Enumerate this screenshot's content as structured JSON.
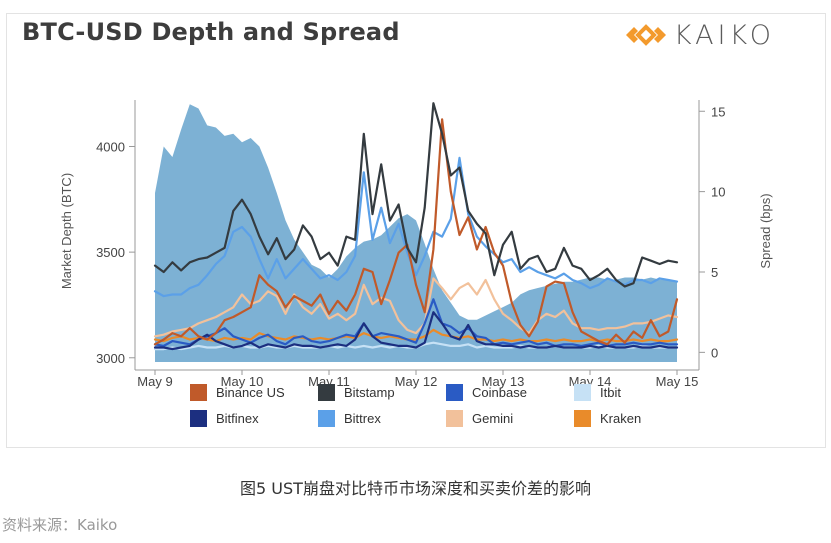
{
  "title": "BTC-USD Depth and Spread",
  "brand": {
    "name": "KAIKO",
    "logo_icon": "kaiko-logo-icon",
    "logo_color": "#f39a2d"
  },
  "caption": "图5 UST崩盘对比特币市场深度和买卖价差的影响",
  "source": "资料来源：Kaiko",
  "chart_data": {
    "type": "area+line",
    "title": "BTC-USD Depth and Spread",
    "x_tick_labels": [
      "May 9",
      "May 10",
      "May 11",
      "May 12",
      "May 13",
      "May 14",
      "May 15"
    ],
    "x_range": [
      0,
      6
    ],
    "y_left": {
      "label": "Market Depth (BTC)",
      "ticks": [
        3000,
        3500,
        4000
      ],
      "range": [
        2980,
        4220
      ]
    },
    "y_right": {
      "label": "Spread (bps)",
      "ticks": [
        0,
        5,
        10,
        15
      ],
      "range": [
        -0.6,
        15.7
      ]
    },
    "depth_area": {
      "name": "Market Depth",
      "color": "#6fa8cf",
      "x": [
        0,
        0.1,
        0.2,
        0.3,
        0.4,
        0.5,
        0.6,
        0.7,
        0.8,
        0.9,
        1.0,
        1.1,
        1.2,
        1.3,
        1.4,
        1.5,
        1.6,
        1.7,
        1.8,
        1.9,
        2.0,
        2.1,
        2.2,
        2.3,
        2.4,
        2.5,
        2.6,
        2.7,
        2.8,
        2.9,
        3.0,
        3.1,
        3.2,
        3.3,
        3.4,
        3.5,
        3.6,
        3.7,
        3.8,
        3.9,
        4.0,
        4.1,
        4.2,
        4.3,
        4.4,
        4.5,
        4.6,
        4.7,
        4.8,
        4.9,
        5.0,
        5.1,
        5.2,
        5.3,
        5.4,
        5.5,
        5.6,
        5.7,
        5.8,
        5.9,
        6.0
      ],
      "values": [
        3780,
        4000,
        3950,
        4080,
        4200,
        4180,
        4100,
        4090,
        4050,
        4060,
        4020,
        4040,
        4000,
        3900,
        3780,
        3650,
        3560,
        3500,
        3440,
        3420,
        3380,
        3420,
        3480,
        3520,
        3550,
        3560,
        3580,
        3620,
        3660,
        3680,
        3650,
        3540,
        3420,
        3320,
        3260,
        3200,
        3180,
        3180,
        3200,
        3220,
        3240,
        3260,
        3300,
        3320,
        3330,
        3340,
        3350,
        3360,
        3360,
        3370,
        3380,
        3380,
        3370,
        3370,
        3380,
        3380,
        3370,
        3380,
        3370,
        3370,
        3360
      ]
    },
    "series": [
      {
        "name": "Binance US",
        "color": "#c05a2a",
        "axis": "right",
        "values": [
          0.5,
          0.8,
          1.2,
          1.0,
          1.5,
          1.0,
          0.8,
          1.2,
          2.0,
          2.2,
          2.5,
          2.8,
          4.8,
          4.2,
          3.8,
          2.8,
          3.5,
          3.2,
          2.9,
          3.6,
          2.4,
          3.2,
          2.6,
          3.6,
          5.2,
          5.0,
          3.0,
          4.5,
          6.2,
          6.7,
          4.2,
          2.5,
          6.4,
          14.5,
          10.0,
          7.3,
          8.4,
          6.4,
          7.8,
          6.2,
          5.4,
          3.1,
          1.7,
          1.0,
          1.9,
          4.1,
          4.4,
          4.3,
          2.5,
          1.3,
          1.0,
          0.7,
          0.5,
          1.1,
          0.6,
          1.3,
          0.9,
          2.0,
          1.0,
          1.3,
          3.3
        ]
      },
      {
        "name": "Bitstamp",
        "color": "#343b40",
        "axis": "right",
        "values": [
          5.4,
          5.0,
          5.6,
          5.1,
          5.6,
          5.8,
          5.9,
          6.2,
          6.5,
          8.8,
          9.5,
          8.6,
          7.2,
          6.1,
          7.1,
          5.8,
          6.4,
          7.9,
          7.2,
          5.8,
          6.2,
          5.4,
          7.2,
          7.0,
          13.6,
          8.6,
          11.7,
          8.2,
          9.2,
          6.5,
          5.6,
          9.0,
          15.5,
          13.6,
          11.0,
          11.5,
          8.8,
          8.0,
          7.4,
          4.8,
          6.7,
          7.5,
          5.2,
          5.8,
          6.0,
          5.0,
          5.2,
          6.5,
          5.4,
          5.2,
          4.5,
          4.8,
          5.2,
          4.5,
          4.1,
          4.3,
          5.9,
          5.7,
          5.5,
          5.7,
          5.6
        ]
      },
      {
        "name": "Coinbase",
        "color": "#2a5bc4",
        "axis": "right",
        "values": [
          0.5,
          0.4,
          0.7,
          0.6,
          0.5,
          0.8,
          1.0,
          1.2,
          1.5,
          1.0,
          0.8,
          0.6,
          0.9,
          1.1,
          0.7,
          0.5,
          0.9,
          1.0,
          0.7,
          0.6,
          0.7,
          0.9,
          1.1,
          1.0,
          1.8,
          1.0,
          1.2,
          1.1,
          1.0,
          0.8,
          0.6,
          1.8,
          3.3,
          1.8,
          1.6,
          1.2,
          1.5,
          1.0,
          0.9,
          0.5,
          0.6,
          0.5,
          0.6,
          0.7,
          0.5,
          0.6,
          0.4,
          0.5,
          0.5,
          0.4,
          0.5,
          0.6,
          0.4,
          0.5,
          0.5,
          0.6,
          0.5,
          0.5,
          0.6,
          0.5,
          0.5
        ]
      },
      {
        "name": "Itbit",
        "color": "#c6e1f5",
        "axis": "right",
        "values": [
          0.2,
          0.2,
          0.3,
          0.2,
          0.3,
          0.4,
          0.3,
          0.3,
          0.4,
          0.3,
          0.4,
          0.3,
          0.3,
          0.4,
          0.3,
          0.3,
          0.4,
          0.3,
          0.3,
          0.3,
          0.4,
          0.3,
          0.4,
          0.3,
          0.4,
          0.3,
          0.4,
          0.3,
          0.4,
          0.3,
          0.3,
          0.5,
          0.6,
          0.5,
          0.4,
          0.4,
          0.5,
          0.3,
          0.4,
          0.3,
          0.3,
          0.3,
          0.4,
          0.3,
          0.3,
          0.3,
          0.4,
          0.3,
          0.3,
          0.3,
          0.3,
          0.4,
          0.3,
          0.3,
          0.3,
          0.3,
          0.4,
          0.3,
          0.3,
          0.3,
          0.3
        ]
      },
      {
        "name": "Bitfinex",
        "color": "#1c2f80",
        "axis": "right",
        "values": [
          0.3,
          0.3,
          0.2,
          0.3,
          0.4,
          0.8,
          1.1,
          0.7,
          0.5,
          0.3,
          0.4,
          0.6,
          0.3,
          0.5,
          0.4,
          0.3,
          0.5,
          0.4,
          0.4,
          0.3,
          0.4,
          0.5,
          0.4,
          0.8,
          1.8,
          1.0,
          0.6,
          0.5,
          0.4,
          0.4,
          0.3,
          0.6,
          2.5,
          1.8,
          1.0,
          0.8,
          1.7,
          0.7,
          0.5,
          0.5,
          0.4,
          0.4,
          0.3,
          0.4,
          0.3,
          0.3,
          0.4,
          0.3,
          0.3,
          0.3,
          0.4,
          0.3,
          0.4,
          0.3,
          0.3,
          0.4,
          0.3,
          0.3,
          0.4,
          0.3,
          0.3
        ]
      },
      {
        "name": "Bittrex",
        "color": "#5ba0e8",
        "axis": "right",
        "values": [
          3.8,
          3.5,
          3.6,
          3.6,
          4.0,
          4.2,
          4.8,
          5.5,
          6.0,
          7.5,
          7.8,
          7.2,
          5.8,
          4.6,
          5.8,
          4.6,
          5.2,
          5.8,
          5.2,
          4.6,
          4.8,
          4.5,
          5.0,
          6.0,
          11.2,
          7.0,
          9.0,
          6.8,
          8.0,
          6.2,
          4.8,
          6.0,
          7.5,
          7.2,
          8.3,
          12.1,
          8.6,
          7.2,
          6.6,
          6.1,
          5.6,
          5.8,
          5.0,
          5.3,
          5.0,
          4.8,
          4.6,
          4.9,
          4.5,
          4.3,
          4.0,
          4.2,
          4.6,
          4.4,
          4.2,
          4.5,
          4.5,
          4.3,
          4.6,
          4.5,
          4.4
        ]
      },
      {
        "name": "Gemini",
        "color": "#f2c19b",
        "axis": "right",
        "values": [
          1.0,
          1.1,
          1.3,
          1.4,
          1.5,
          1.8,
          2.0,
          2.2,
          2.5,
          2.8,
          3.6,
          3.0,
          3.2,
          3.8,
          3.5,
          2.4,
          3.6,
          2.8,
          2.4,
          3.0,
          2.1,
          2.4,
          2.0,
          2.4,
          4.2,
          3.0,
          3.4,
          3.2,
          2.0,
          1.4,
          1.2,
          1.8,
          4.6,
          4.0,
          3.3,
          4.0,
          4.3,
          3.6,
          4.5,
          3.3,
          2.4,
          2.0,
          1.5,
          1.2,
          2.0,
          2.4,
          2.2,
          2.6,
          1.8,
          1.5,
          1.5,
          1.4,
          1.5,
          1.5,
          1.6,
          1.8,
          1.8,
          1.9,
          2.1,
          2.3,
          2.2
        ]
      },
      {
        "name": "Kraken",
        "color": "#e98b2a",
        "axis": "right",
        "values": [
          0.8,
          0.7,
          0.9,
          1.0,
          0.8,
          0.9,
          0.8,
          0.7,
          0.9,
          0.8,
          0.9,
          0.8,
          1.2,
          1.0,
          0.9,
          0.8,
          1.0,
          0.9,
          0.8,
          0.9,
          0.8,
          0.9,
          1.0,
          0.9,
          1.2,
          1.0,
          0.9,
          1.0,
          0.9,
          0.8,
          0.8,
          1.0,
          1.4,
          1.1,
          1.0,
          0.9,
          1.0,
          0.8,
          0.8,
          0.7,
          0.8,
          0.7,
          0.8,
          0.7,
          0.7,
          0.8,
          0.7,
          0.8,
          0.7,
          0.7,
          0.8,
          0.7,
          0.8,
          0.7,
          0.7,
          0.8,
          0.7,
          0.8,
          0.7,
          0.7,
          0.8
        ]
      }
    ],
    "legend": {
      "placement": "bottom",
      "entries": [
        {
          "name": "Binance US",
          "color": "#c05a2a"
        },
        {
          "name": "Bitstamp",
          "color": "#343b40"
        },
        {
          "name": "Coinbase",
          "color": "#2a5bc4"
        },
        {
          "name": "Itbit",
          "color": "#c6e1f5"
        },
        {
          "name": "Bitfinex",
          "color": "#1c2f80"
        },
        {
          "name": "Bittrex",
          "color": "#5ba0e8"
        },
        {
          "name": "Gemini",
          "color": "#f2c19b"
        },
        {
          "name": "Kraken",
          "color": "#e98b2a"
        }
      ]
    }
  }
}
